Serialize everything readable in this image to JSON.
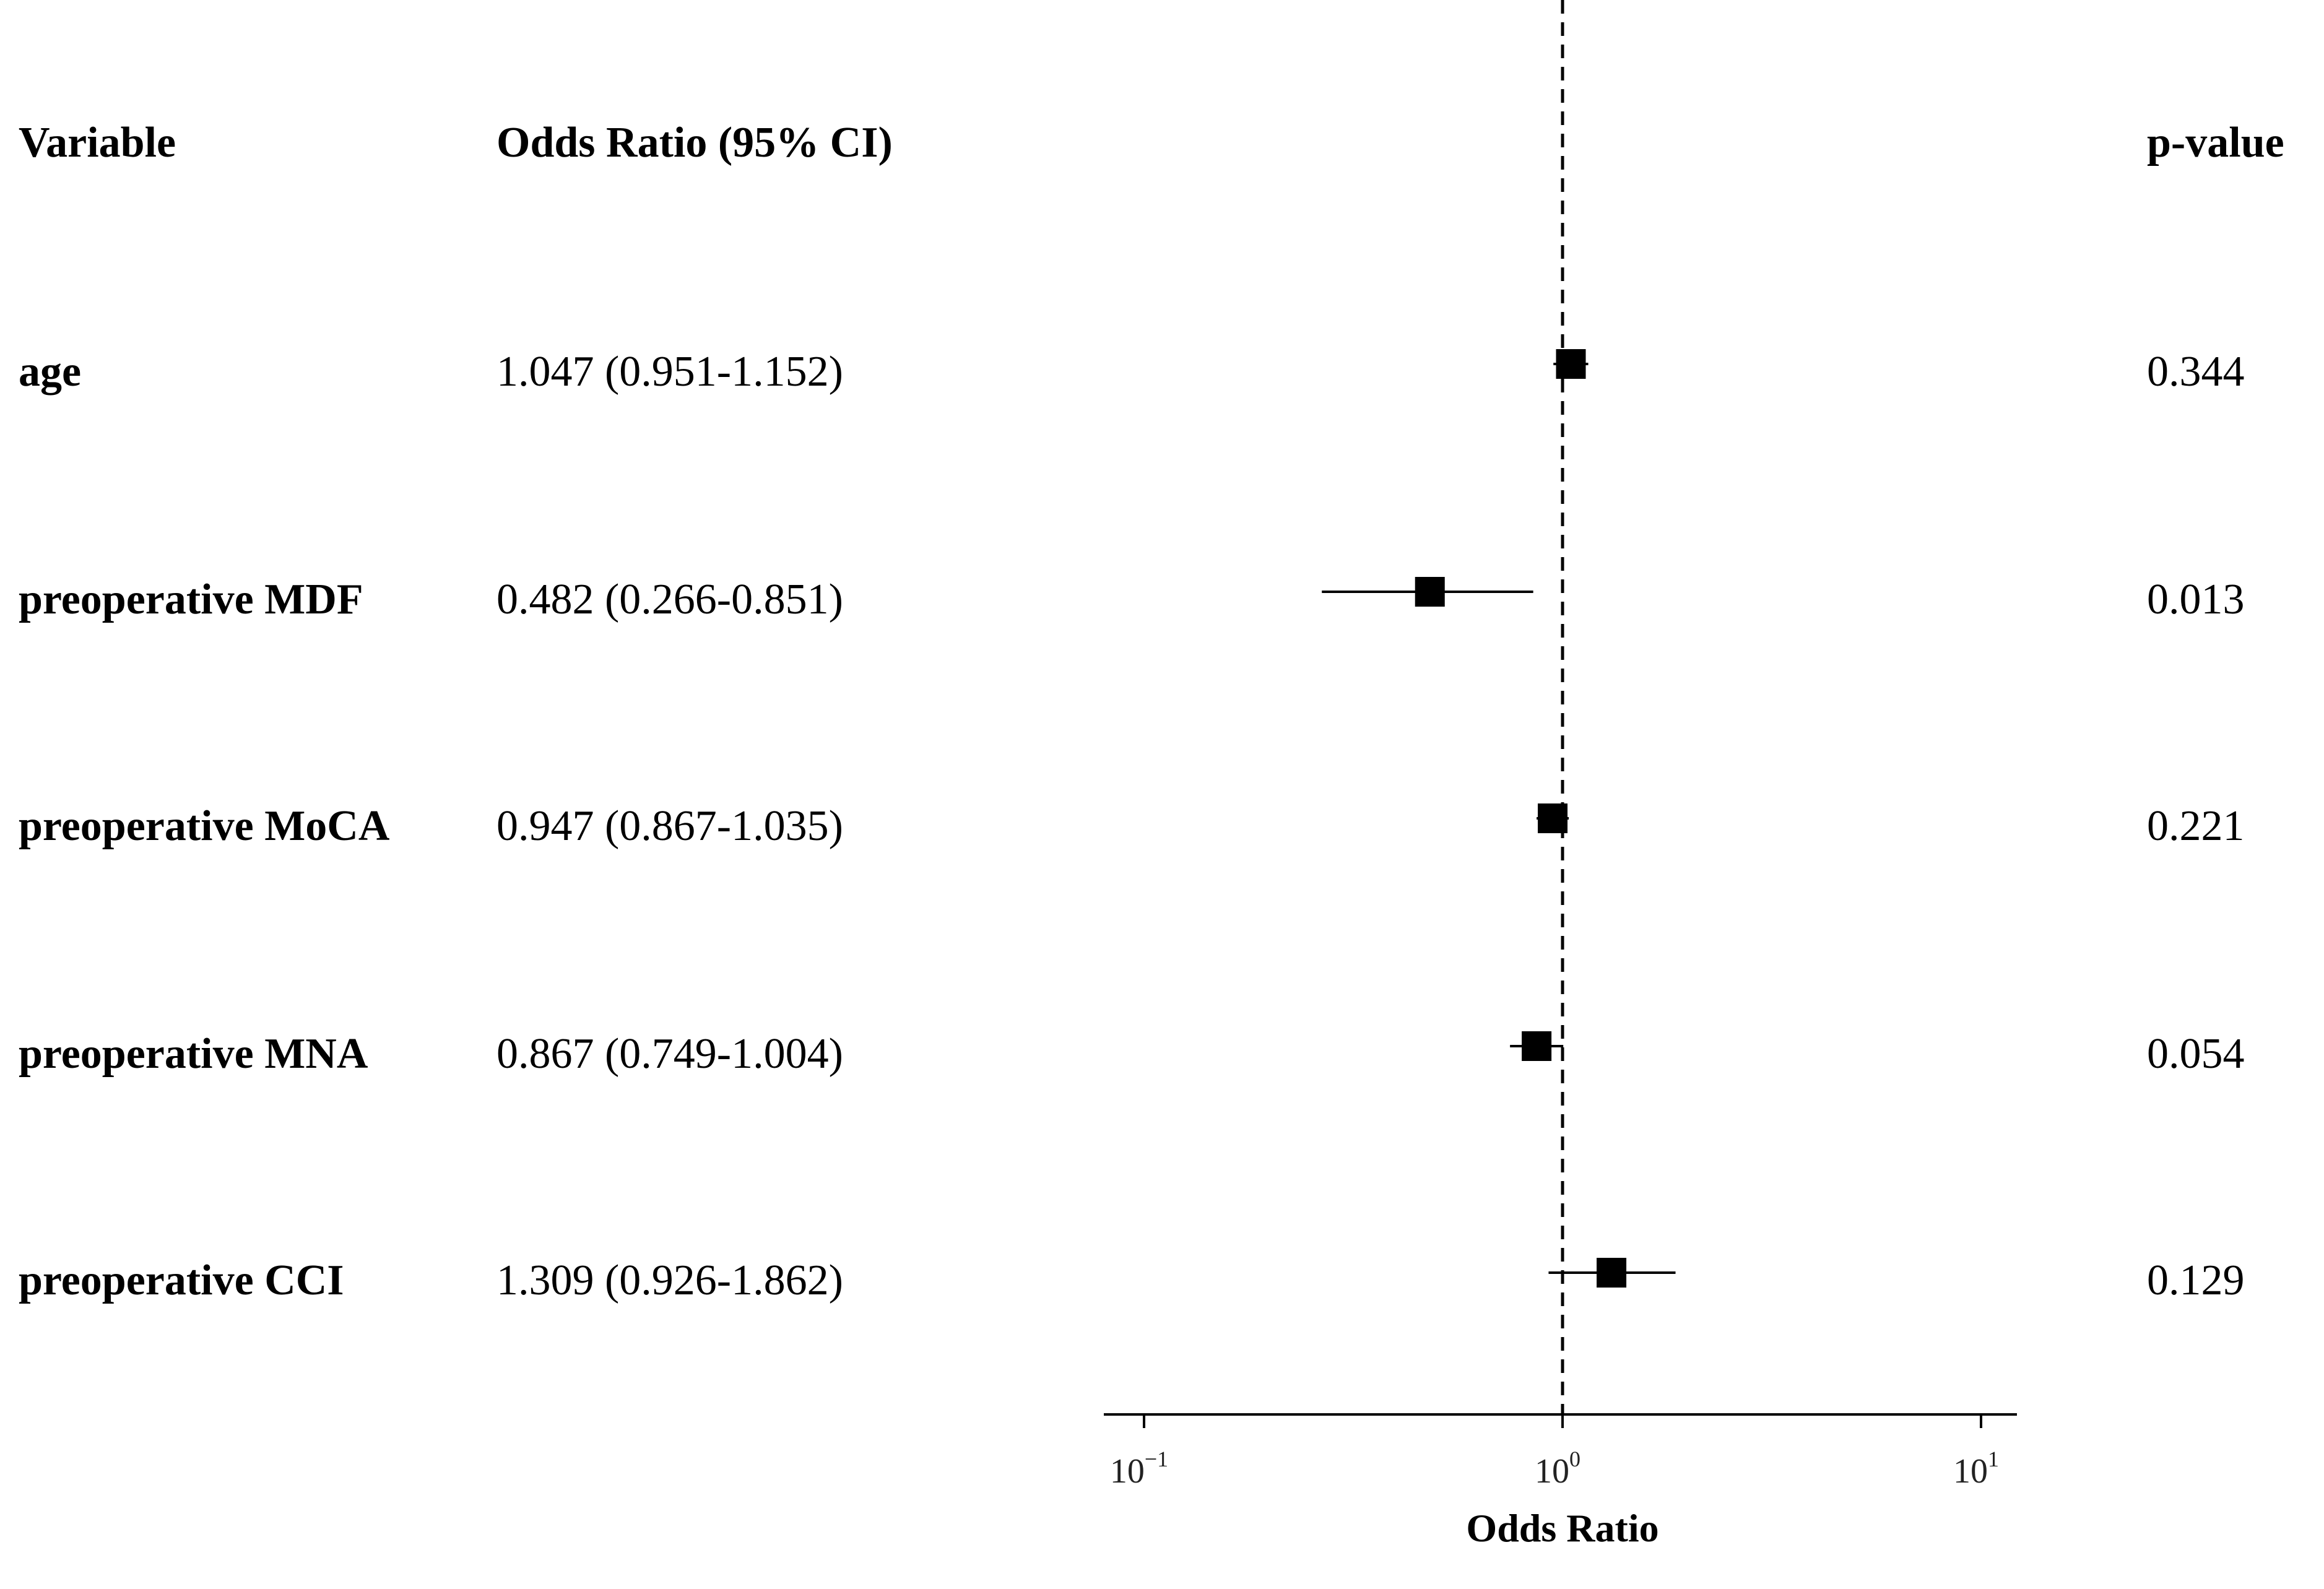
{
  "table": {
    "headers": {
      "variable": "Variable",
      "odds_ratio": "Odds Ratio (95% CI)",
      "p_value": "p-value"
    },
    "rows": [
      {
        "variable": "age",
        "or_ci": "1.047 (0.951-1.152)",
        "p": "0.344"
      },
      {
        "variable": "preoperative MDF",
        "or_ci": "0.482 (0.266-0.851)",
        "p": "0.013"
      },
      {
        "variable": "preoperative MoCA",
        "or_ci": "0.947 (0.867-1.035)",
        "p": "0.221"
      },
      {
        "variable": "preoperative MNA",
        "or_ci": "0.867 (0.749-1.004)",
        "p": "0.054"
      },
      {
        "variable": "preoperative CCI",
        "or_ci": "1.309 (0.926-1.862)",
        "p": "0.129"
      }
    ]
  },
  "chart_data": {
    "type": "scatter",
    "subtype": "forest",
    "xlabel": "Odds Ratio",
    "xscale": "log",
    "xlim": [
      0.1,
      10
    ],
    "reference_line": 1,
    "ticks": [
      {
        "value": 0.1,
        "base": "10",
        "exp": "−1"
      },
      {
        "value": 1,
        "base": "10",
        "exp": "0"
      },
      {
        "value": 10,
        "base": "10",
        "exp": "1"
      }
    ],
    "points": [
      {
        "label": "age",
        "or": 1.047,
        "lower": 0.951,
        "upper": 1.152
      },
      {
        "label": "preoperative MDF",
        "or": 0.482,
        "lower": 0.266,
        "upper": 0.851
      },
      {
        "label": "preoperative MoCA",
        "or": 0.947,
        "lower": 0.867,
        "upper": 1.035
      },
      {
        "label": "preoperative MNA",
        "or": 0.867,
        "lower": 0.749,
        "upper": 1.004
      },
      {
        "label": "preoperative CCI",
        "or": 1.309,
        "lower": 0.926,
        "upper": 1.862
      }
    ]
  }
}
